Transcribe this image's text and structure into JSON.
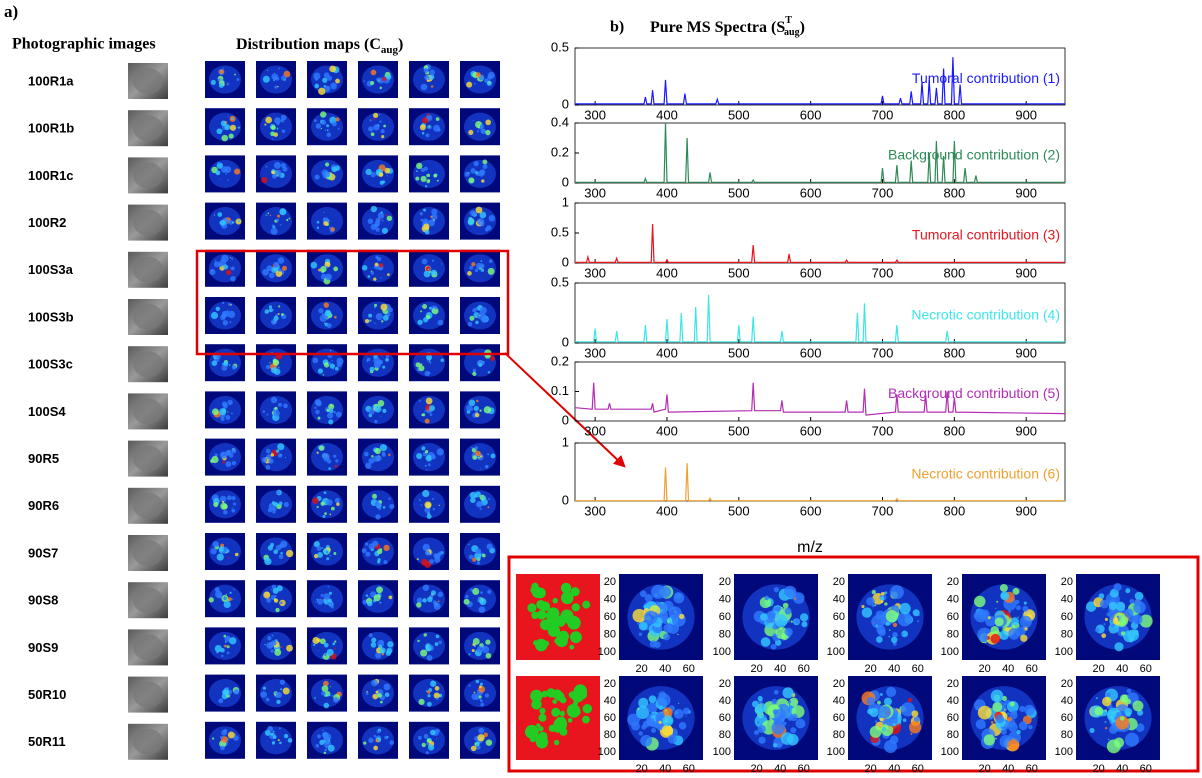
{
  "panel_a": {
    "label": "a)",
    "photo_heading": "Photographic images",
    "maps_heading": {
      "text": "Distribution maps (C",
      "sub": "aug",
      "end": ")"
    },
    "samples": [
      "100R1a",
      "100R1b",
      "100R1c",
      "100R2",
      "100S3a",
      "100S3b",
      "100S3c",
      "100S4",
      "90R5",
      "90R6",
      "90S7",
      "90S8",
      "90S9",
      "50R10",
      "50R11"
    ]
  },
  "panel_b": {
    "label": "b)",
    "title": {
      "text": "Pure MS Spectra (S",
      "sup": "T",
      "sub": "aug",
      "end": ")"
    },
    "xlabel": "m/z"
  },
  "inset": {
    "yticks": [
      20,
      40,
      60,
      80,
      100
    ],
    "xticks": [
      20,
      40,
      60
    ]
  },
  "chart_data": [
    {
      "type": "line",
      "annotation": "Tumoral contribution (1)",
      "color": "#1a1aff",
      "xlim": [
        272,
        954
      ],
      "xticks": [
        300,
        400,
        500,
        600,
        700,
        800,
        900
      ],
      "ylim": [
        0,
        0.5
      ],
      "yticks": [
        0,
        0.5
      ],
      "x": [
        272,
        368,
        370,
        372,
        378,
        380,
        382,
        396,
        398,
        400,
        423,
        425,
        427,
        468,
        470,
        472,
        698,
        700,
        702,
        723,
        725,
        727,
        738,
        740,
        742,
        753,
        755,
        757,
        763,
        765,
        767,
        773,
        775,
        777,
        783,
        785,
        787,
        796,
        798,
        800,
        806,
        808,
        810,
        954
      ],
      "values": [
        0.01,
        0.01,
        0.07,
        0.01,
        0.01,
        0.13,
        0.01,
        0.01,
        0.22,
        0.01,
        0.01,
        0.1,
        0.01,
        0.01,
        0.05,
        0.01,
        0.01,
        0.08,
        0.01,
        0.01,
        0.06,
        0.01,
        0.01,
        0.12,
        0.01,
        0.01,
        0.2,
        0.01,
        0.01,
        0.22,
        0.01,
        0.01,
        0.15,
        0.01,
        0.01,
        0.32,
        0.01,
        0.01,
        0.42,
        0.01,
        0.01,
        0.18,
        0.01,
        0.01
      ]
    },
    {
      "type": "line",
      "annotation": "Background contribution (2)",
      "color": "#2e8b57",
      "xlim": [
        272,
        954
      ],
      "xticks": [
        300,
        400,
        500,
        600,
        700,
        800,
        900
      ],
      "ylim": [
        0,
        0.4
      ],
      "yticks": [
        0,
        0.2,
        0.4
      ],
      "x": [
        272,
        368,
        370,
        372,
        396,
        398,
        400,
        426,
        428,
        430,
        458,
        460,
        462,
        518,
        520,
        522,
        698,
        700,
        702,
        718,
        720,
        722,
        738,
        740,
        742,
        763,
        765,
        767,
        773,
        775,
        777,
        783,
        785,
        787,
        798,
        800,
        802,
        813,
        815,
        817,
        828,
        830,
        832,
        954
      ],
      "values": [
        0.005,
        0.005,
        0.03,
        0.005,
        0.005,
        0.4,
        0.005,
        0.005,
        0.3,
        0.005,
        0.005,
        0.07,
        0.005,
        0.005,
        0.02,
        0.005,
        0.005,
        0.1,
        0.005,
        0.005,
        0.12,
        0.005,
        0.005,
        0.15,
        0.005,
        0.005,
        0.2,
        0.005,
        0.005,
        0.28,
        0.005,
        0.005,
        0.18,
        0.005,
        0.005,
        0.28,
        0.005,
        0.005,
        0.1,
        0.005,
        0.005,
        0.05,
        0.005,
        0.005
      ]
    },
    {
      "type": "line",
      "annotation": "Tumoral contribution (3)",
      "color": "#e8141e",
      "xlim": [
        272,
        954
      ],
      "xticks": [
        300,
        400,
        500,
        600,
        700,
        800,
        900
      ],
      "ylim": [
        0,
        1
      ],
      "yticks": [
        0,
        0.5,
        1
      ],
      "x": [
        272,
        288,
        290,
        292,
        328,
        330,
        332,
        378,
        380,
        382,
        398,
        400,
        402,
        518,
        520,
        522,
        568,
        570,
        572,
        648,
        650,
        652,
        718,
        720,
        722,
        954
      ],
      "values": [
        0.01,
        0.01,
        0.1,
        0.01,
        0.01,
        0.08,
        0.01,
        0.01,
        0.65,
        0.01,
        0.01,
        0.05,
        0.01,
        0.01,
        0.3,
        0.01,
        0.01,
        0.15,
        0.01,
        0.01,
        0.05,
        0.01,
        0.01,
        0.05,
        0.01,
        0.01
      ]
    },
    {
      "type": "line",
      "annotation": "Necrotic  contribution (4)",
      "color": "#3de6e6",
      "xlim": [
        272,
        954
      ],
      "xticks": [
        300,
        400,
        500,
        600,
        700,
        800,
        900
      ],
      "ylim": [
        0,
        0.5
      ],
      "yticks": [
        0,
        0.5
      ],
      "x": [
        272,
        298,
        300,
        302,
        328,
        330,
        332,
        368,
        370,
        372,
        398,
        400,
        402,
        418,
        420,
        422,
        438,
        440,
        442,
        456,
        458,
        460,
        498,
        500,
        502,
        518,
        520,
        522,
        558,
        560,
        562,
        663,
        665,
        667,
        673,
        675,
        677,
        718,
        720,
        722,
        788,
        790,
        792,
        954
      ],
      "values": [
        0.01,
        0.01,
        0.12,
        0.01,
        0.01,
        0.1,
        0.01,
        0.01,
        0.15,
        0.01,
        0.01,
        0.2,
        0.01,
        0.01,
        0.25,
        0.01,
        0.01,
        0.3,
        0.01,
        0.01,
        0.4,
        0.01,
        0.01,
        0.15,
        0.01,
        0.01,
        0.22,
        0.01,
        0.01,
        0.1,
        0.01,
        0.01,
        0.25,
        0.01,
        0.01,
        0.33,
        0.01,
        0.01,
        0.15,
        0.01,
        0.01,
        0.1,
        0.01,
        0.01
      ]
    },
    {
      "type": "line",
      "annotation": "Background contribution (5)",
      "color": "#b42db4",
      "xlim": [
        272,
        954
      ],
      "xticks": [
        300,
        400,
        500,
        600,
        700,
        800,
        900
      ],
      "ylim": [
        0,
        0.2
      ],
      "yticks": [
        0,
        0.1,
        0.2
      ],
      "x": [
        272,
        296,
        298,
        300,
        318,
        320,
        322,
        378,
        380,
        382,
        398,
        400,
        402,
        518,
        520,
        522,
        558,
        560,
        562,
        648,
        650,
        652,
        673,
        675,
        677,
        718,
        720,
        722,
        758,
        760,
        762,
        788,
        790,
        792,
        798,
        800,
        802,
        954
      ],
      "values": [
        0.045,
        0.04,
        0.13,
        0.04,
        0.04,
        0.06,
        0.04,
        0.04,
        0.06,
        0.03,
        0.04,
        0.09,
        0.03,
        0.035,
        0.13,
        0.035,
        0.035,
        0.07,
        0.03,
        0.03,
        0.07,
        0.03,
        0.03,
        0.11,
        0.02,
        0.03,
        0.09,
        0.03,
        0.03,
        0.09,
        0.03,
        0.03,
        0.1,
        0.03,
        0.03,
        0.08,
        0.03,
        0.025
      ]
    },
    {
      "type": "line",
      "annotation": "Necrotic  contribution (6)",
      "color": "#f0a030",
      "xlim": [
        272,
        954
      ],
      "xticks": [
        300,
        400,
        500,
        600,
        700,
        800,
        900
      ],
      "ylim": [
        0,
        1
      ],
      "yticks": [
        0,
        1
      ],
      "x": [
        272,
        396,
        398,
        400,
        426,
        428,
        430,
        458,
        460,
        462,
        718,
        720,
        722,
        954
      ],
      "values": [
        0.005,
        0.005,
        0.58,
        0.005,
        0.005,
        0.65,
        0.005,
        0.005,
        0.05,
        0.005,
        0.005,
        0.04,
        0.005,
        0.005
      ]
    }
  ]
}
